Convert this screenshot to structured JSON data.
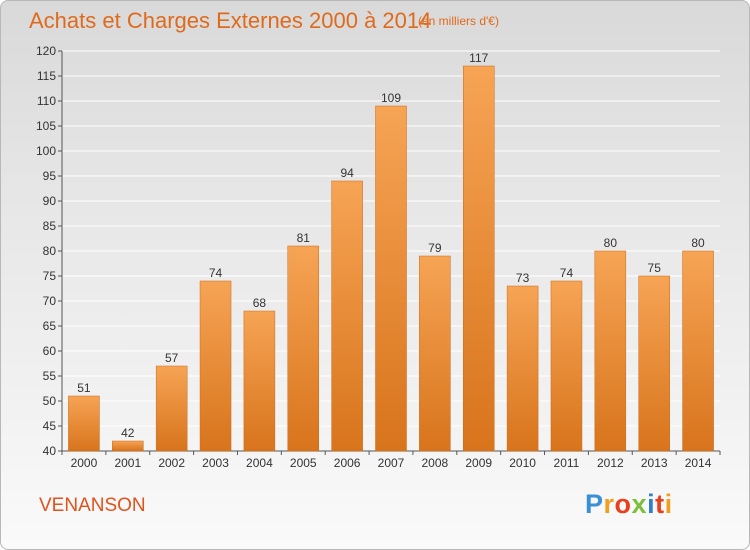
{
  "title": "Achats et Charges Externes 2000 à 2014",
  "subtitle": "(en milliers d'€)",
  "commune": "VENANSON",
  "brand": {
    "text": "Proxiti",
    "letters": [
      {
        "ch": "P",
        "color": "#3a8fd6"
      },
      {
        "ch": "r",
        "color": "#f0a020"
      },
      {
        "ch": "o",
        "color": "#e8401c"
      },
      {
        "ch": "x",
        "color": "#7cbf3a"
      },
      {
        "ch": "i",
        "color": "#2f7fd0"
      },
      {
        "ch": "t",
        "color": "#e8401c"
      },
      {
        "ch": "i",
        "color": "#f0a020"
      }
    ]
  },
  "colors": {
    "accent": "#e06a1c",
    "bar_top": "#f6a455",
    "bar_bottom": "#d8741c",
    "grid": "#ffffff"
  },
  "chart_data": {
    "type": "bar",
    "categories": [
      "2000",
      "2001",
      "2002",
      "2003",
      "2004",
      "2005",
      "2006",
      "2007",
      "2008",
      "2009",
      "2010",
      "2011",
      "2012",
      "2013",
      "2014"
    ],
    "values": [
      51,
      42,
      57,
      74,
      68,
      81,
      94,
      109,
      79,
      117,
      73,
      74,
      80,
      75,
      80
    ],
    "ylim": [
      40,
      120
    ],
    "yticks": [
      40,
      45,
      50,
      55,
      60,
      65,
      70,
      75,
      80,
      85,
      90,
      95,
      100,
      105,
      110,
      115,
      120
    ],
    "grid": true,
    "xlabel": "",
    "ylabel": ""
  }
}
